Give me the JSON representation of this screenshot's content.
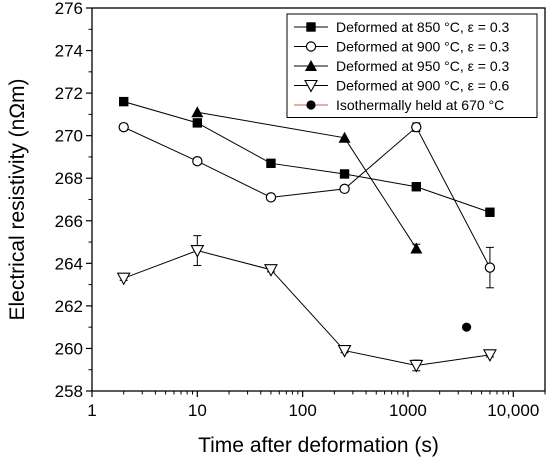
{
  "chart_data": {
    "type": "line",
    "title": "",
    "xlabel": "Time after deformation (s)",
    "ylabel": "Electrical resistivity (nΩm)",
    "x_scale": "log",
    "xlim": [
      1,
      20000
    ],
    "ylim": [
      258,
      276
    ],
    "x_ticks": [
      1,
      10,
      100,
      1000,
      10000
    ],
    "x_tick_labels": [
      "1",
      "10",
      "100",
      "1000",
      "10,000"
    ],
    "y_ticks": [
      258,
      260,
      262,
      264,
      266,
      268,
      270,
      272,
      274,
      276
    ],
    "y_tick_labels": [
      "258",
      "260",
      "262",
      "264",
      "266",
      "268",
      "270",
      "272",
      "274",
      "276"
    ],
    "grid": false,
    "legend_position": "top-right",
    "series": [
      {
        "name": "Deformed at 850 °C, ε = 0.3",
        "marker": "square-filled",
        "connect": true,
        "x": [
          2,
          10,
          50,
          250,
          1200,
          6000
        ],
        "y": [
          271.6,
          270.6,
          268.7,
          268.2,
          267.6,
          266.4
        ],
        "err": [
          0,
          0,
          0,
          0,
          0,
          0
        ]
      },
      {
        "name": "Deformed at 900 °C, ε = 0.3",
        "marker": "circle-open",
        "connect": true,
        "x": [
          2,
          10,
          50,
          250,
          1200,
          6000
        ],
        "y": [
          270.4,
          268.8,
          267.1,
          267.5,
          270.4,
          263.8
        ],
        "err": [
          0.15,
          0.15,
          0.15,
          0.15,
          0.2,
          0.95
        ]
      },
      {
        "name": "Deformed at 950 °C, ε = 0.3",
        "marker": "triangle-up-filled",
        "connect": true,
        "x": [
          10,
          250,
          1200
        ],
        "y": [
          271.1,
          269.9,
          264.7
        ],
        "err": [
          0,
          0,
          0.2
        ]
      },
      {
        "name": "Deformed at 900 °C, ε = 0.6",
        "marker": "triangle-down-open",
        "connect": true,
        "x": [
          2,
          10,
          50,
          250,
          1200,
          6000
        ],
        "y": [
          263.3,
          264.6,
          263.7,
          259.9,
          259.2,
          259.7
        ],
        "err": [
          0.1,
          0.7,
          0.1,
          0.1,
          0.25,
          0.1
        ]
      },
      {
        "name": "Isothermally held at 670 °C",
        "marker": "circle-filled",
        "connect": false,
        "legend_line_color": "#d9534f",
        "x": [
          3600
        ],
        "y": [
          261.0
        ],
        "err": [
          0
        ]
      }
    ]
  }
}
